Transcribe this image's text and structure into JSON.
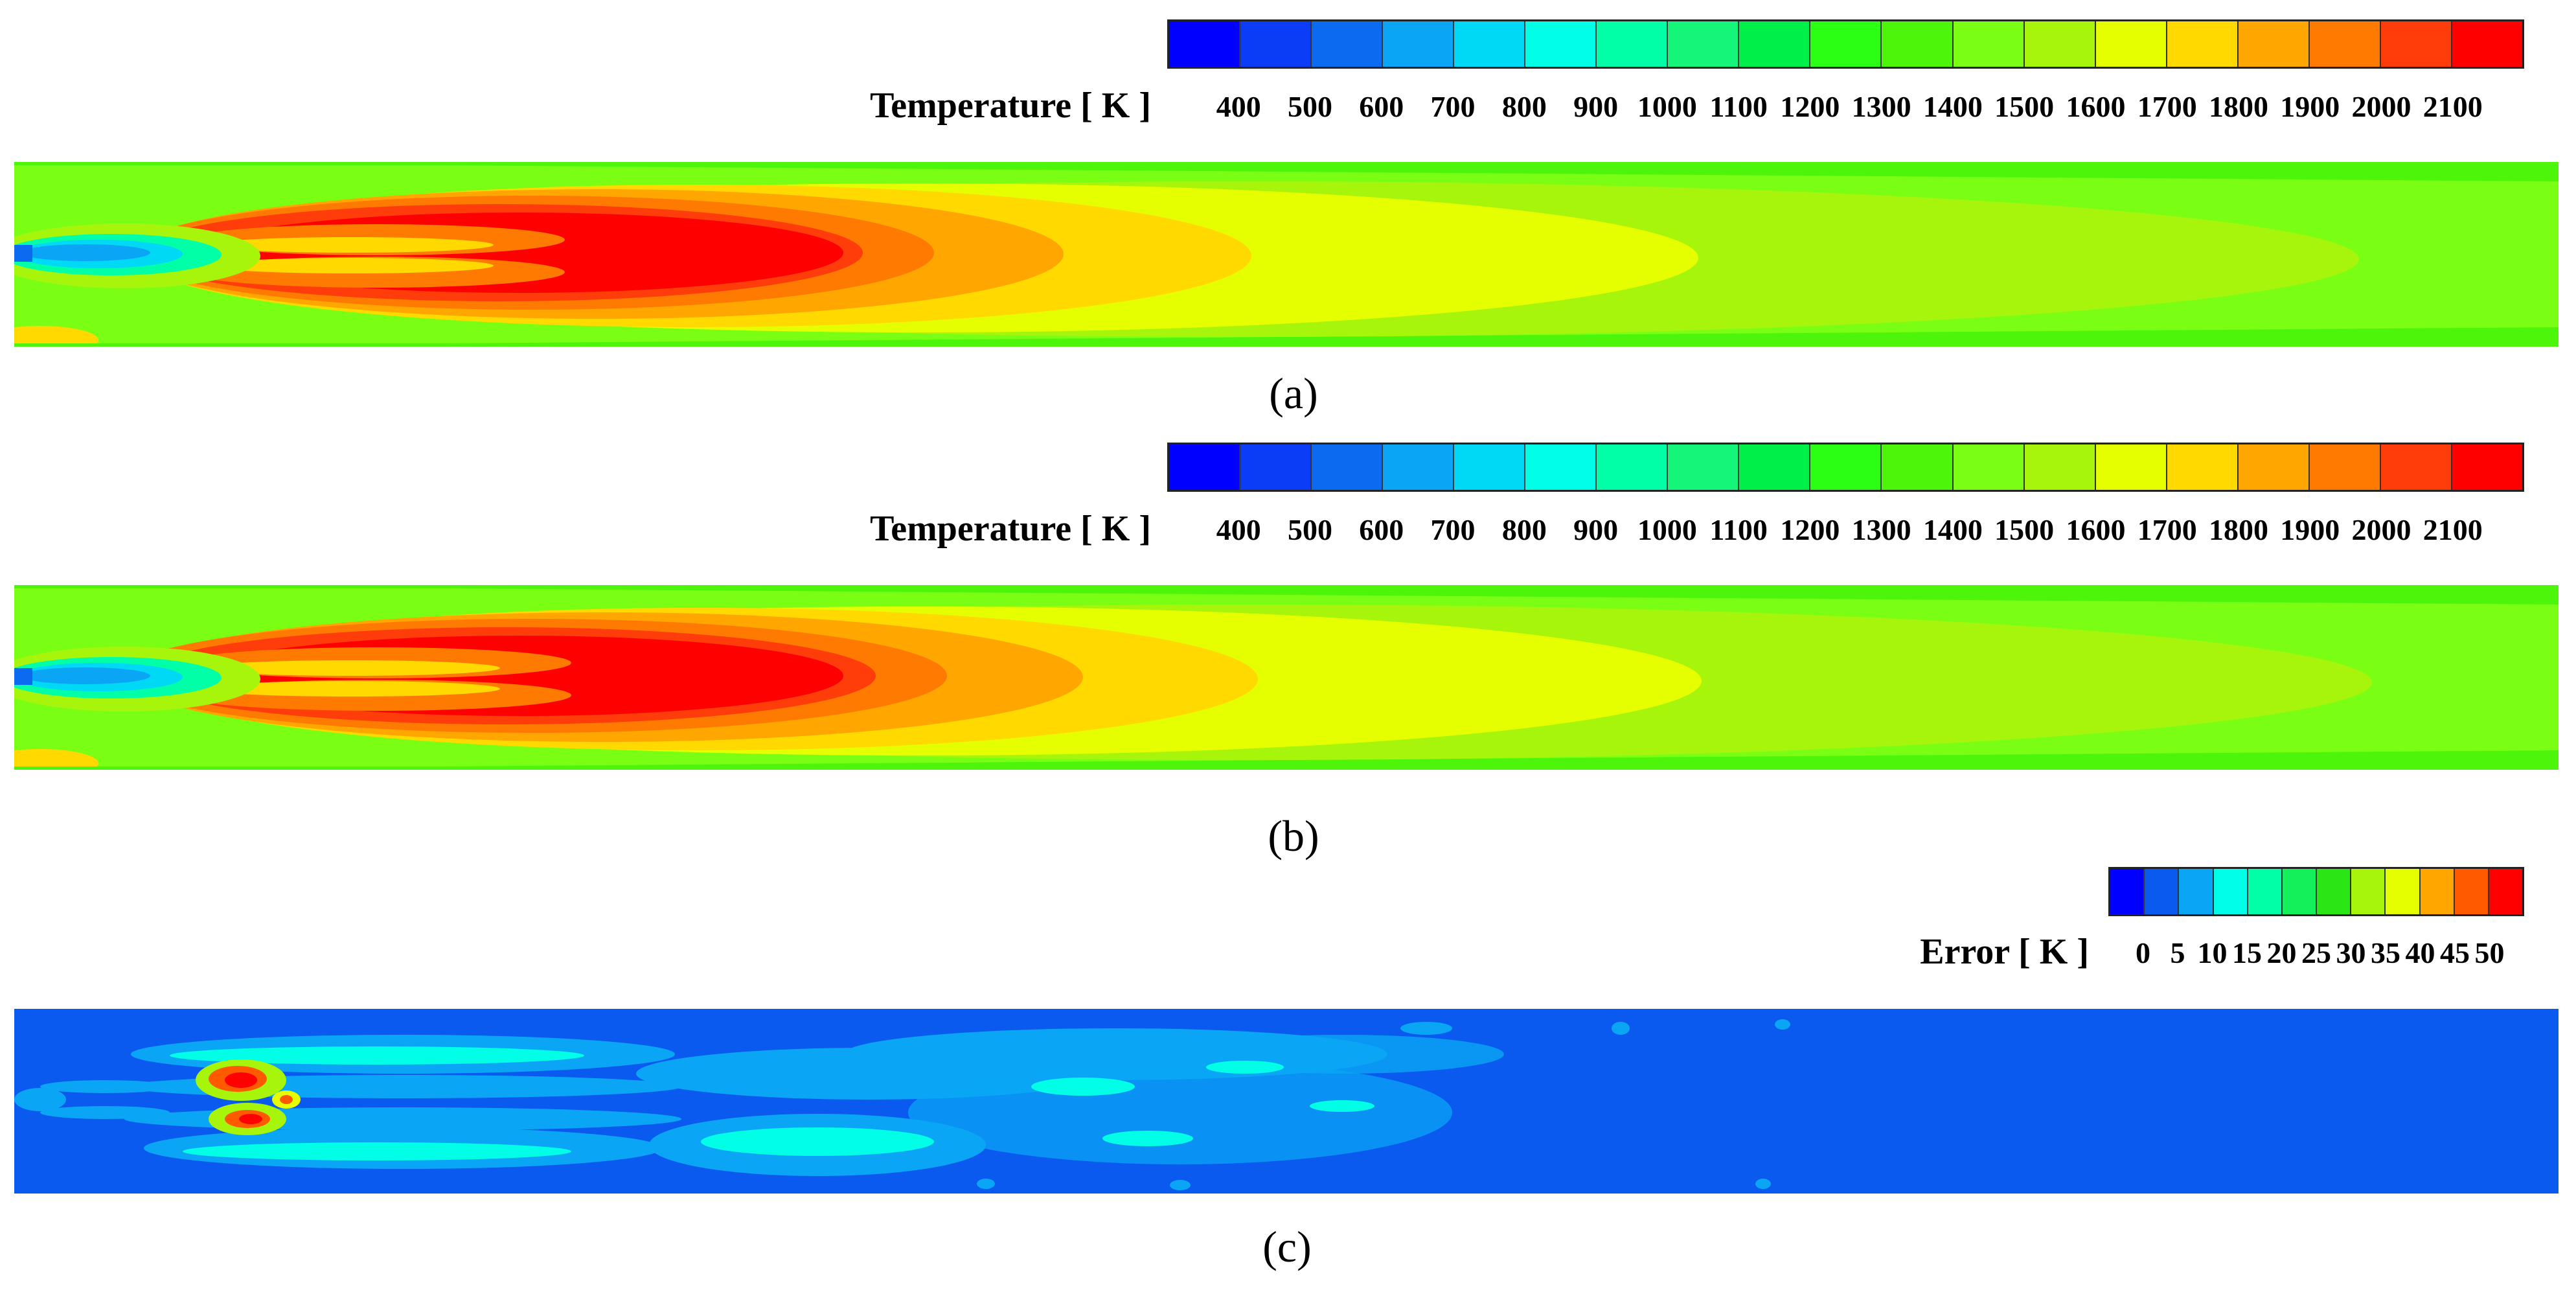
{
  "panel_a": {
    "legend_title": "Temperature [ K ]",
    "ticks": [
      "400",
      "500",
      "600",
      "700",
      "800",
      "900",
      "1000",
      "1100",
      "1200",
      "1300",
      "1400",
      "1500",
      "1600",
      "1700",
      "1800",
      "1900",
      "2000",
      "2100"
    ],
    "colors": [
      "#0000ff",
      "#0a3df5",
      "#0a6af0",
      "#0aa6f5",
      "#00d9f5",
      "#00ffe6",
      "#00ffa6",
      "#14f57a",
      "#00f04a",
      "#2aff14",
      "#4cf50a",
      "#7aff14",
      "#a6f50a",
      "#e6ff00",
      "#ffd900",
      "#ffa600",
      "#ff7a00",
      "#ff3d0a",
      "#ff0000"
    ],
    "caption": "(a)"
  },
  "panel_b": {
    "legend_title": "Temperature [ K ]",
    "ticks": [
      "400",
      "500",
      "600",
      "700",
      "800",
      "900",
      "1000",
      "1100",
      "1200",
      "1300",
      "1400",
      "1500",
      "1600",
      "1700",
      "1800",
      "1900",
      "2000",
      "2100"
    ],
    "colors": [
      "#0000ff",
      "#0a3df5",
      "#0a6af0",
      "#0aa6f5",
      "#00d9f5",
      "#00ffe6",
      "#00ffa6",
      "#14f57a",
      "#00f04a",
      "#2aff14",
      "#4cf50a",
      "#7aff14",
      "#a6f50a",
      "#e6ff00",
      "#ffd900",
      "#ffa600",
      "#ff7a00",
      "#ff3d0a",
      "#ff0000"
    ],
    "caption": "(b)"
  },
  "panel_c": {
    "legend_title": "Error [ K ]",
    "ticks": [
      "0",
      "5",
      "10",
      "15",
      "20",
      "25",
      "30",
      "35",
      "40",
      "45",
      "50"
    ],
    "colors": [
      "#0000ff",
      "#0a5af0",
      "#0aa6f5",
      "#00ffe6",
      "#00ffa6",
      "#14f05a",
      "#2ae614",
      "#a6f50a",
      "#e6ff00",
      "#ffa600",
      "#ff5a00",
      "#ff0000"
    ],
    "caption": "(c)"
  }
}
